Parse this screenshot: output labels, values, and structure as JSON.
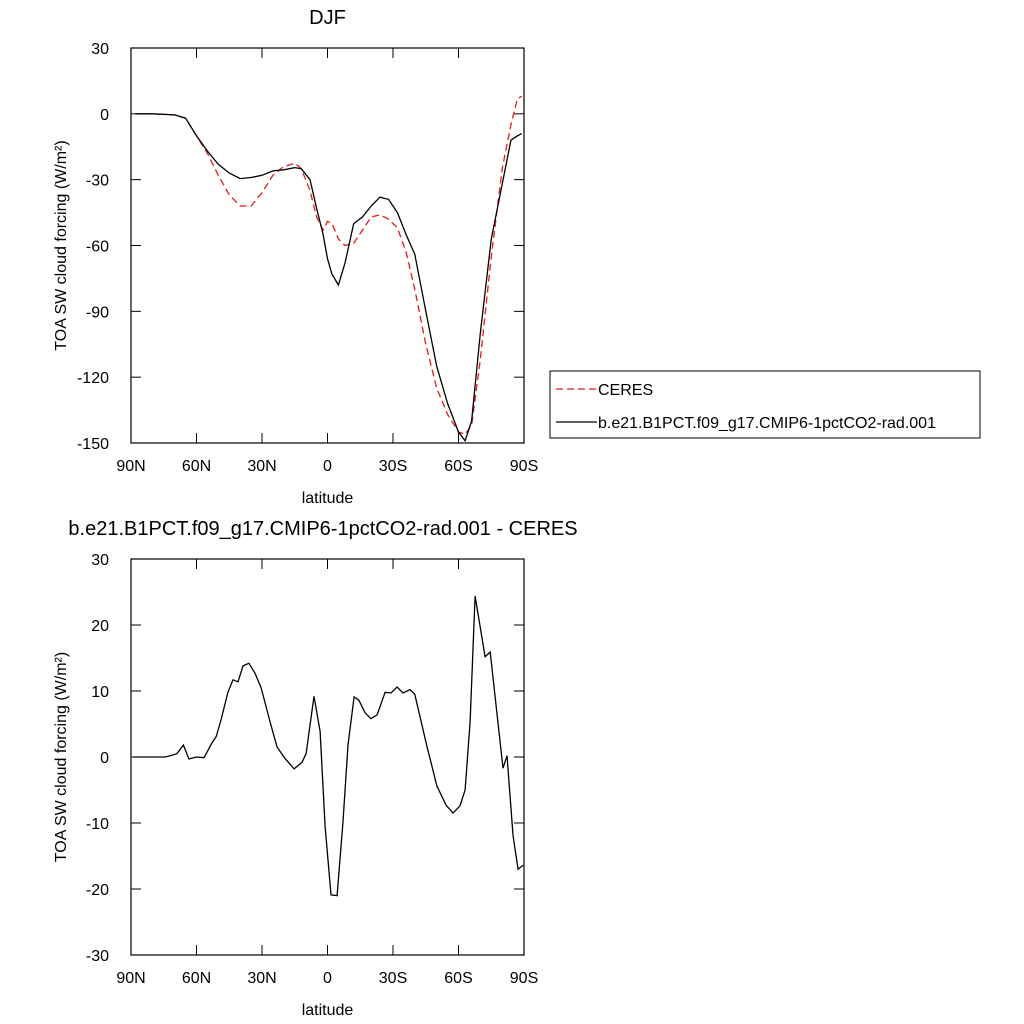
{
  "chart_data": [
    {
      "type": "line",
      "title": "DJF",
      "x_label": "latitude",
      "y_label": "TOA SW cloud forcing (W/m²)",
      "x": [
        88,
        80,
        70,
        65,
        60,
        55,
        50,
        45,
        40,
        35,
        30,
        25,
        20,
        15,
        12,
        8,
        5,
        2,
        0,
        -2,
        -5,
        -8,
        -12,
        -16,
        -20,
        -24,
        -28,
        -32,
        -36,
        -40,
        -45,
        -50,
        -55,
        -60,
        -63,
        -66,
        -70,
        -75,
        -80,
        -84,
        -87,
        -89
      ],
      "series": [
        {
          "name": "CERES",
          "color": "#e41a1c",
          "line_style": "dashed",
          "values": [
            0,
            0,
            -0.5,
            -2,
            -10,
            -18,
            -28,
            -37,
            -42,
            -42,
            -36,
            -28,
            -24,
            -22.5,
            -25,
            -35,
            -47,
            -53,
            -49,
            -50,
            -57,
            -60,
            -59,
            -53,
            -47,
            -46,
            -48,
            -52,
            -63,
            -80,
            -105,
            -125,
            -137,
            -145,
            -146,
            -142,
            -112,
            -65,
            -25,
            -5,
            7,
            8
          ]
        },
        {
          "name": "b.e21.B1PCT.f09_g17.CMIP6-1pctCO2-rad.001",
          "color": "#000000",
          "line_style": "solid",
          "values": [
            0,
            0,
            -0.5,
            -2,
            -10,
            -17,
            -23,
            -27,
            -29.5,
            -29,
            -28,
            -26,
            -25.5,
            -24.5,
            -25,
            -30,
            -43,
            -55,
            -66,
            -73,
            -78,
            -68,
            -50,
            -47,
            -42,
            -38,
            -39,
            -45,
            -55,
            -64,
            -90,
            -115,
            -132,
            -145,
            -149,
            -140,
            -100,
            -57,
            -32,
            -12,
            -10,
            -9
          ]
        }
      ],
      "xlim": [
        90,
        -90
      ],
      "xticks": [
        {
          "value": 90,
          "label": "90N"
        },
        {
          "value": 60,
          "label": "60N"
        },
        {
          "value": 30,
          "label": "30N"
        },
        0,
        {
          "value": -30,
          "label": "30S"
        },
        {
          "value": -60,
          "label": "60S"
        },
        {
          "value": -90,
          "label": "90S"
        }
      ],
      "ylim": [
        -150,
        30
      ],
      "yticks": [
        -150,
        -120,
        -90,
        -60,
        -30,
        0,
        30
      ],
      "legend": "right"
    },
    {
      "type": "line",
      "title": "b.e21.B1PCT.f09_g17.CMIP6-1pctCO2-rad.001 - CERES",
      "x_label": "latitude",
      "y_label": "TOA SW cloud forcing (W/m²)",
      "x": [
        88.6,
        74.4,
        72,
        69,
        66,
        63.5,
        60,
        56.5,
        53,
        51,
        48.8,
        45.6,
        43.3,
        41,
        38.7,
        36,
        33.2,
        30.4,
        26.3,
        23.1,
        19.5,
        15.3,
        11.7,
        9.8,
        6.2,
        3.4,
        1.1,
        -1.6,
        -4.4,
        -7.1,
        -9.4,
        -12.2,
        -14.4,
        -17.2,
        -19.9,
        -22.7,
        -26.4,
        -29.1,
        -31.9,
        -34.6,
        -37.8,
        -40,
        -45.5,
        -50.1,
        -54.3,
        -57.5,
        -60.7,
        -63,
        -65.3,
        -67.6,
        -72.2,
        -74.5,
        -80.4,
        -82.2,
        -85,
        -87.3,
        -89.6
      ],
      "series": [
        {
          "color": "#000000",
          "line_style": "solid",
          "values": [
            0,
            0,
            0.2,
            0.5,
            1.8,
            -0.3,
            0,
            -0.1,
            2.1,
            3.1,
            5.6,
            9.8,
            11.7,
            11.4,
            13.8,
            14.2,
            12.7,
            10.5,
            5.3,
            1.5,
            -0.2,
            -1.8,
            -0.8,
            0.5,
            9.2,
            3.9,
            -10.5,
            -20.9,
            -21,
            -9.8,
            1.8,
            9.1,
            8.6,
            6.7,
            5.8,
            6.4,
            9.8,
            9.7,
            10.6,
            9.7,
            10.2,
            9.5,
            1.7,
            -4.4,
            -7.3,
            -8.5,
            -7.4,
            -5,
            5.3,
            24.4,
            15.2,
            15.9,
            -1.7,
            0.2,
            -12,
            -17,
            -16.4
          ]
        }
      ],
      "xlim": [
        90,
        -90
      ],
      "xticks": [
        {
          "value": 90,
          "label": "90N"
        },
        {
          "value": 60,
          "label": "60N"
        },
        {
          "value": 30,
          "label": "30N"
        },
        0,
        {
          "value": -30,
          "label": "30S"
        },
        {
          "value": -60,
          "label": "60S"
        },
        {
          "value": -90,
          "label": "90S"
        }
      ],
      "ylim": [
        -30,
        30
      ],
      "yticks": [
        -30,
        -20,
        -10,
        0,
        10,
        20,
        30
      ]
    }
  ]
}
